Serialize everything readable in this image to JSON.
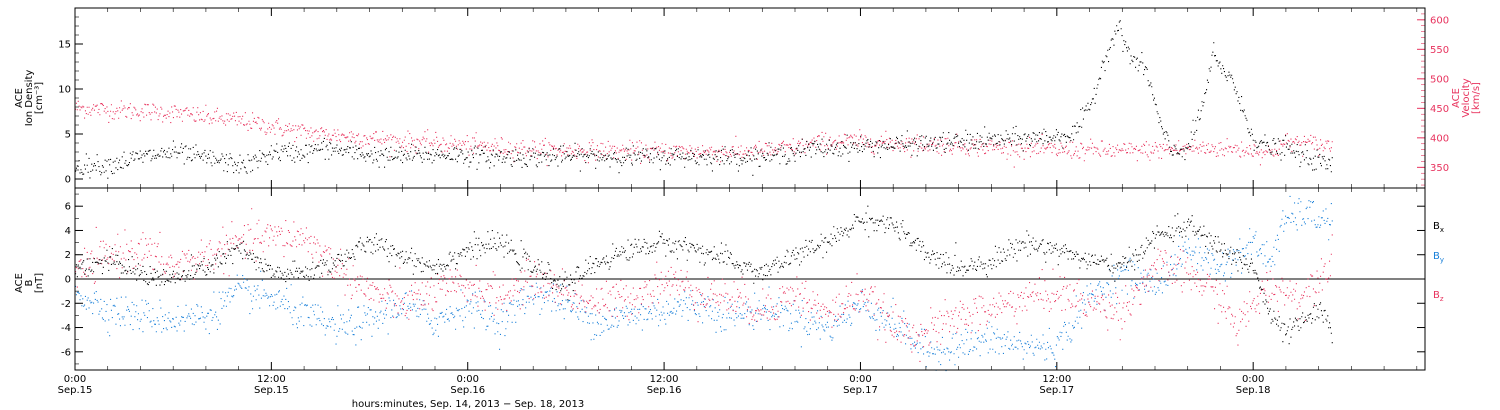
{
  "chart_data": [
    {
      "type": "scatter",
      "panel": "top",
      "left_axis": {
        "label_lines": [
          "ACE",
          "Ion Density",
          "[cm⁻³]"
        ],
        "ylim": [
          -1,
          19
        ],
        "ticks": [
          0,
          5,
          10,
          15
        ],
        "tick_labels": [
          "0",
          "5",
          "10",
          "15"
        ],
        "color": "#000000"
      },
      "right_axis": {
        "label_lines": [
          "ACE",
          "Velocity",
          "[km/s]"
        ],
        "ylim": [
          315,
          620
        ],
        "ticks": [
          350,
          400,
          450,
          500,
          550,
          600
        ],
        "tick_labels": [
          "350",
          "400",
          "450",
          "500",
          "550",
          "600"
        ],
        "color": "#e8335e"
      },
      "series": [
        {
          "axis": "left",
          "color": "#000000",
          "points": [
            [
              0,
              1.5
            ],
            [
              2,
              1.6
            ],
            [
              4,
              2.5
            ],
            [
              6,
              3.0
            ],
            [
              7.5,
              2.5
            ],
            [
              9,
              2.0
            ],
            [
              10.5,
              1.5
            ],
            [
              11,
              2.0
            ],
            [
              12,
              3.0
            ],
            [
              14,
              3.0
            ],
            [
              15,
              3.5
            ],
            [
              17,
              3.0
            ],
            [
              19,
              2.5
            ],
            [
              21,
              2.7
            ],
            [
              23,
              2.8
            ],
            [
              25,
              2.5
            ],
            [
              27,
              2.5
            ],
            [
              29,
              2.5
            ],
            [
              31,
              2.6
            ],
            [
              33,
              2.5
            ],
            [
              35,
              2.5
            ],
            [
              37,
              2.6
            ],
            [
              39,
              2.5
            ],
            [
              41,
              2.5
            ],
            [
              43,
              2.7
            ],
            [
              44,
              3.2
            ],
            [
              46,
              3.5
            ],
            [
              48,
              3.7
            ],
            [
              50,
              3.8
            ],
            [
              52,
              4.0
            ],
            [
              54,
              4.2
            ],
            [
              56,
              4.4
            ],
            [
              58,
              4.5
            ],
            [
              60,
              4.8
            ],
            [
              61,
              5.0
            ],
            [
              62,
              8.0
            ],
            [
              63,
              14.0
            ],
            [
              63.7,
              17.0
            ],
            [
              64.5,
              13.5
            ],
            [
              65.5,
              12.0
            ],
            [
              66,
              8.0
            ],
            [
              66.5,
              5.0
            ],
            [
              67,
              3.0
            ],
            [
              68,
              3.5
            ],
            [
              68.5,
              6.0
            ],
            [
              69,
              9.0
            ],
            [
              69.5,
              14.0
            ],
            [
              70,
              12.0
            ],
            [
              70.7,
              11.5
            ],
            [
              71,
              9.0
            ],
            [
              71.5,
              7.0
            ],
            [
              72,
              4.5
            ],
            [
              73,
              3.5
            ],
            [
              74,
              3.5
            ],
            [
              75,
              2.5
            ],
            [
              76,
              2.0
            ],
            [
              76.8,
              1.5
            ]
          ]
        },
        {
          "axis": "right",
          "color": "#e8335e",
          "points": [
            [
              0,
              452
            ],
            [
              2,
              448
            ],
            [
              4,
              446
            ],
            [
              6,
              443
            ],
            [
              8,
              436
            ],
            [
              10,
              430
            ],
            [
              12,
              420
            ],
            [
              14,
              410
            ],
            [
              16,
              405
            ],
            [
              18,
              400
            ],
            [
              20,
              395
            ],
            [
              22,
              392
            ],
            [
              24,
              388
            ],
            [
              26,
              385
            ],
            [
              28,
              382
            ],
            [
              30,
              380
            ],
            [
              32,
              380
            ],
            [
              34,
              378
            ],
            [
              36,
              378
            ],
            [
              38,
              378
            ],
            [
              40,
              377
            ],
            [
              42,
              378
            ],
            [
              44,
              385
            ],
            [
              46,
              395
            ],
            [
              48,
              395
            ],
            [
              50,
              392
            ],
            [
              52,
              390
            ],
            [
              54,
              388
            ],
            [
              56,
              385
            ],
            [
              58,
              383
            ],
            [
              60,
              380
            ],
            [
              62,
              380
            ],
            [
              64,
              378
            ],
            [
              66,
              380
            ],
            [
              68,
              383
            ],
            [
              70,
              383
            ],
            [
              72,
              380
            ],
            [
              73,
              375
            ],
            [
              74,
              393
            ],
            [
              75,
              393
            ],
            [
              76,
              388
            ],
            [
              76.8,
              388
            ]
          ]
        }
      ]
    },
    {
      "type": "scatter",
      "panel": "bottom",
      "left_axis": {
        "label_lines": [
          "ACE",
          "B",
          "[nT]"
        ],
        "ylim": [
          -7.5,
          7.5
        ],
        "ticks": [
          -6,
          -4,
          -2,
          0,
          2,
          4,
          6
        ],
        "tick_labels": [
          "-6",
          "-4",
          "-2",
          "0",
          "2",
          "4",
          "6"
        ]
      },
      "legend": [
        "Bx",
        "By",
        "Bz"
      ],
      "legend_placement": "right",
      "series": [
        {
          "name": "Bx",
          "color": "#000000",
          "points": [
            [
              0,
              1.0
            ],
            [
              2,
              1.5
            ],
            [
              4,
              0.5
            ],
            [
              6,
              0.0
            ],
            [
              8,
              1.0
            ],
            [
              10,
              2.5
            ],
            [
              12,
              0.5
            ],
            [
              14,
              0.5
            ],
            [
              16,
              1.5
            ],
            [
              18,
              3.0
            ],
            [
              20,
              2.0
            ],
            [
              22,
              1.0
            ],
            [
              24,
              2.5
            ],
            [
              26,
              3.0
            ],
            [
              28,
              1.0
            ],
            [
              30,
              -0.5
            ],
            [
              32,
              1.5
            ],
            [
              34,
              2.5
            ],
            [
              36,
              3.0
            ],
            [
              38,
              2.5
            ],
            [
              40,
              1.5
            ],
            [
              42,
              0.5
            ],
            [
              44,
              2.0
            ],
            [
              46,
              3.0
            ],
            [
              48,
              5.0
            ],
            [
              50,
              4.5
            ],
            [
              52,
              2.0
            ],
            [
              54,
              1.0
            ],
            [
              56,
              1.5
            ],
            [
              58,
              3.0
            ],
            [
              60,
              2.5
            ],
            [
              62,
              1.5
            ],
            [
              64,
              1.0
            ],
            [
              66,
              3.5
            ],
            [
              68,
              4.5
            ],
            [
              70,
              2.5
            ],
            [
              72,
              1.0
            ],
            [
              73,
              -3.0
            ],
            [
              74,
              -4.5
            ],
            [
              75,
              -3.5
            ],
            [
              76,
              -2.5
            ],
            [
              76.8,
              -4.5
            ]
          ]
        },
        {
          "name": "By",
          "color": "#1a80d9",
          "points": [
            [
              0,
              -1.0
            ],
            [
              2,
              -2.5
            ],
            [
              4,
              -3.0
            ],
            [
              6,
              -3.3
            ],
            [
              8,
              -3.0
            ],
            [
              10,
              -1.0
            ],
            [
              12,
              -1.5
            ],
            [
              14,
              -3.0
            ],
            [
              16,
              -4.0
            ],
            [
              18,
              -3.5
            ],
            [
              20,
              -2.0
            ],
            [
              22,
              -3.5
            ],
            [
              24,
              -2.0
            ],
            [
              26,
              -3.5
            ],
            [
              28,
              -1.0
            ],
            [
              30,
              -2.0
            ],
            [
              32,
              -3.5
            ],
            [
              34,
              -3.0
            ],
            [
              36,
              -2.5
            ],
            [
              38,
              -2.0
            ],
            [
              40,
              -3.0
            ],
            [
              42,
              -2.5
            ],
            [
              44,
              -3.0
            ],
            [
              46,
              -4.0
            ],
            [
              48,
              -2.0
            ],
            [
              50,
              -3.5
            ],
            [
              52,
              -6.0
            ],
            [
              54,
              -5.5
            ],
            [
              56,
              -5.0
            ],
            [
              58,
              -5.5
            ],
            [
              60,
              -5.5
            ],
            [
              62,
              -1.5
            ],
            [
              64,
              0.5
            ],
            [
              66,
              -0.5
            ],
            [
              68,
              2.5
            ],
            [
              70,
              1.0
            ],
            [
              72,
              3.0
            ],
            [
              73,
              1.5
            ],
            [
              74,
              5.0
            ],
            [
              75,
              5.5
            ],
            [
              76,
              5.0
            ],
            [
              76.8,
              4.8
            ]
          ]
        },
        {
          "name": "Bz",
          "color": "#e8335e",
          "points": [
            [
              0,
              0.5
            ],
            [
              2,
              2.0
            ],
            [
              4,
              2.5
            ],
            [
              6,
              1.0
            ],
            [
              8,
              2.0
            ],
            [
              10,
              3.0
            ],
            [
              12,
              3.5
            ],
            [
              14,
              3.5
            ],
            [
              16,
              1.0
            ],
            [
              18,
              -1.0
            ],
            [
              20,
              -2.0
            ],
            [
              22,
              -1.0
            ],
            [
              24,
              -0.5
            ],
            [
              26,
              -1.5
            ],
            [
              28,
              0.0
            ],
            [
              30,
              -1.0
            ],
            [
              32,
              -2.0
            ],
            [
              34,
              -1.5
            ],
            [
              36,
              0.0
            ],
            [
              38,
              -1.0
            ],
            [
              40,
              -1.5
            ],
            [
              42,
              -2.5
            ],
            [
              44,
              -1.0
            ],
            [
              46,
              -3.0
            ],
            [
              48,
              -1.0
            ],
            [
              50,
              -4.0
            ],
            [
              52,
              -4.5
            ],
            [
              54,
              -3.0
            ],
            [
              56,
              -2.5
            ],
            [
              58,
              -1.5
            ],
            [
              60,
              -1.0
            ],
            [
              62,
              -2.0
            ],
            [
              64,
              -2.5
            ],
            [
              66,
              1.0
            ],
            [
              68,
              0.5
            ],
            [
              70,
              -1.5
            ],
            [
              71,
              -4.0
            ],
            [
              72,
              -2.0
            ],
            [
              73,
              -0.5
            ],
            [
              74,
              -1.0
            ],
            [
              75,
              -1.5
            ],
            [
              76,
              0.5
            ],
            [
              76.8,
              1.5
            ]
          ]
        }
      ]
    }
  ],
  "x_axis": {
    "xlim": [
      0,
      82.5
    ],
    "units": "hours from Sep.15 0:00",
    "major_ticks": [
      0,
      12,
      24,
      36,
      48,
      60,
      72
    ],
    "labels": [
      {
        "time": "0:00",
        "date": "Sep.15"
      },
      {
        "time": "12:00",
        "date": "Sep.15"
      },
      {
        "time": "0:00",
        "date": "Sep.16"
      },
      {
        "time": "12:00",
        "date": "Sep.16"
      },
      {
        "time": "0:00",
        "date": "Sep.17"
      },
      {
        "time": "12:00",
        "date": "Sep.17"
      },
      {
        "time": "0:00",
        "date": "Sep.18"
      }
    ],
    "title": "hours:minutes, Sep. 14, 2013 − Sep. 18, 2013"
  }
}
